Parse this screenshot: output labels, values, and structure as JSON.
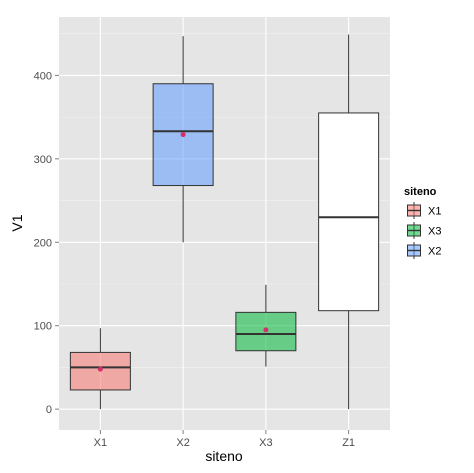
{
  "chart_data": {
    "type": "boxplot",
    "xlabel": "siteno",
    "ylabel": "V1",
    "ylim": [
      -25,
      470
    ],
    "y_ticks": [
      0,
      100,
      200,
      300,
      400
    ],
    "categories": [
      "X1",
      "X2",
      "X3",
      "Z1"
    ],
    "grid": true,
    "legend_position": "right",
    "boxes": [
      {
        "category": "X1",
        "group": "X1",
        "min": 0,
        "q1": 23,
        "median": 50,
        "q3": 68,
        "max": 97,
        "mean": 48,
        "color": "#f8766d"
      },
      {
        "category": "X2",
        "group": "X2",
        "min": 200,
        "q1": 268,
        "median": 333,
        "q3": 390,
        "max": 447,
        "mean": 329,
        "color": "#619cff"
      },
      {
        "category": "X3",
        "group": "X3",
        "min": 51,
        "q1": 70,
        "median": 90,
        "q3": 116,
        "max": 149,
        "mean": 95,
        "color": "#00ba38"
      },
      {
        "category": "Z1",
        "group": null,
        "min": 0,
        "q1": 118,
        "median": 230,
        "q3": 355,
        "max": 449,
        "mean": null,
        "color": "#ffffff"
      }
    ],
    "legend": {
      "title": "siteno",
      "items": [
        {
          "label": "X1",
          "color": "#f8766d"
        },
        {
          "label": "X3",
          "color": "#00ba38"
        },
        {
          "label": "X2",
          "color": "#619cff"
        }
      ]
    }
  }
}
